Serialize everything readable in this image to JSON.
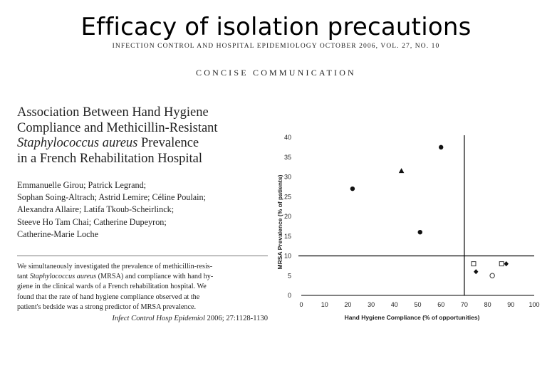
{
  "slide": {
    "title": "Efficacy of isolation precautions"
  },
  "journal_header": "Infection Control and Hospital Epidemiology   October 2006, Vol. 27, No. 10",
  "section_label": "Concise Communication",
  "article": {
    "title_lines": [
      "Association Between Hand Hygiene",
      "Compliance and Methicillin-Resistant",
      "Staphylococcus aureus Prevalence",
      "in a French Rehabilitation Hospital"
    ],
    "author_lines": [
      "Emmanuelle Girou; Patrick Legrand;",
      "Sophan Soing-Altrach; Astrid Lemire; Céline Poulain;",
      "Alexandra Allaire; Latifa Tkoub-Scheirlinck;",
      "Steeve Ho Tam Chai; Catherine Dupeyron;",
      "Catherine-Marie Loche"
    ],
    "abstract_lines": [
      "We simultaneously investigated the prevalence of methicillin-resis-",
      "tant Staphylococcus aureus (MRSA) and compliance with hand hy-",
      "giene in the clinical wards of a French rehabilitation hospital. We",
      "found that the rate of hand hygiene compliance observed at the",
      "patient's bedside was a strong predictor of MRSA prevalence."
    ],
    "citation": {
      "journal": "Infect Control Hosp Epidemiol",
      "details": " 2006; 27:1128-1130"
    }
  },
  "chart_data": {
    "type": "scatter",
    "title": "",
    "xlabel": "Hand Hygiene Compliance (% of opportunities)",
    "ylabel": "MRSA Prevalence (% of patients)",
    "xlim": [
      0,
      100
    ],
    "ylim": [
      0,
      40
    ],
    "x_ticks": [
      0,
      10,
      20,
      30,
      40,
      50,
      60,
      70,
      80,
      90,
      100
    ],
    "y_ticks": [
      0,
      5,
      10,
      15,
      20,
      25,
      30,
      35,
      40
    ],
    "grid": false,
    "reference_lines": {
      "x": 70,
      "y": 10
    },
    "points": [
      {
        "x": 22,
        "y": 27,
        "marker": "filled-circle"
      },
      {
        "x": 43,
        "y": 31.5,
        "marker": "filled-triangle"
      },
      {
        "x": 51,
        "y": 16,
        "marker": "filled-circle"
      },
      {
        "x": 60,
        "y": 37.5,
        "marker": "filled-circle"
      },
      {
        "x": 74,
        "y": 8,
        "marker": "open-square"
      },
      {
        "x": 75,
        "y": 6,
        "marker": "filled-diamond"
      },
      {
        "x": 82,
        "y": 5,
        "marker": "open-circle"
      },
      {
        "x": 86,
        "y": 8,
        "marker": "open-square"
      },
      {
        "x": 88,
        "y": 8,
        "marker": "filled-diamond"
      }
    ]
  }
}
